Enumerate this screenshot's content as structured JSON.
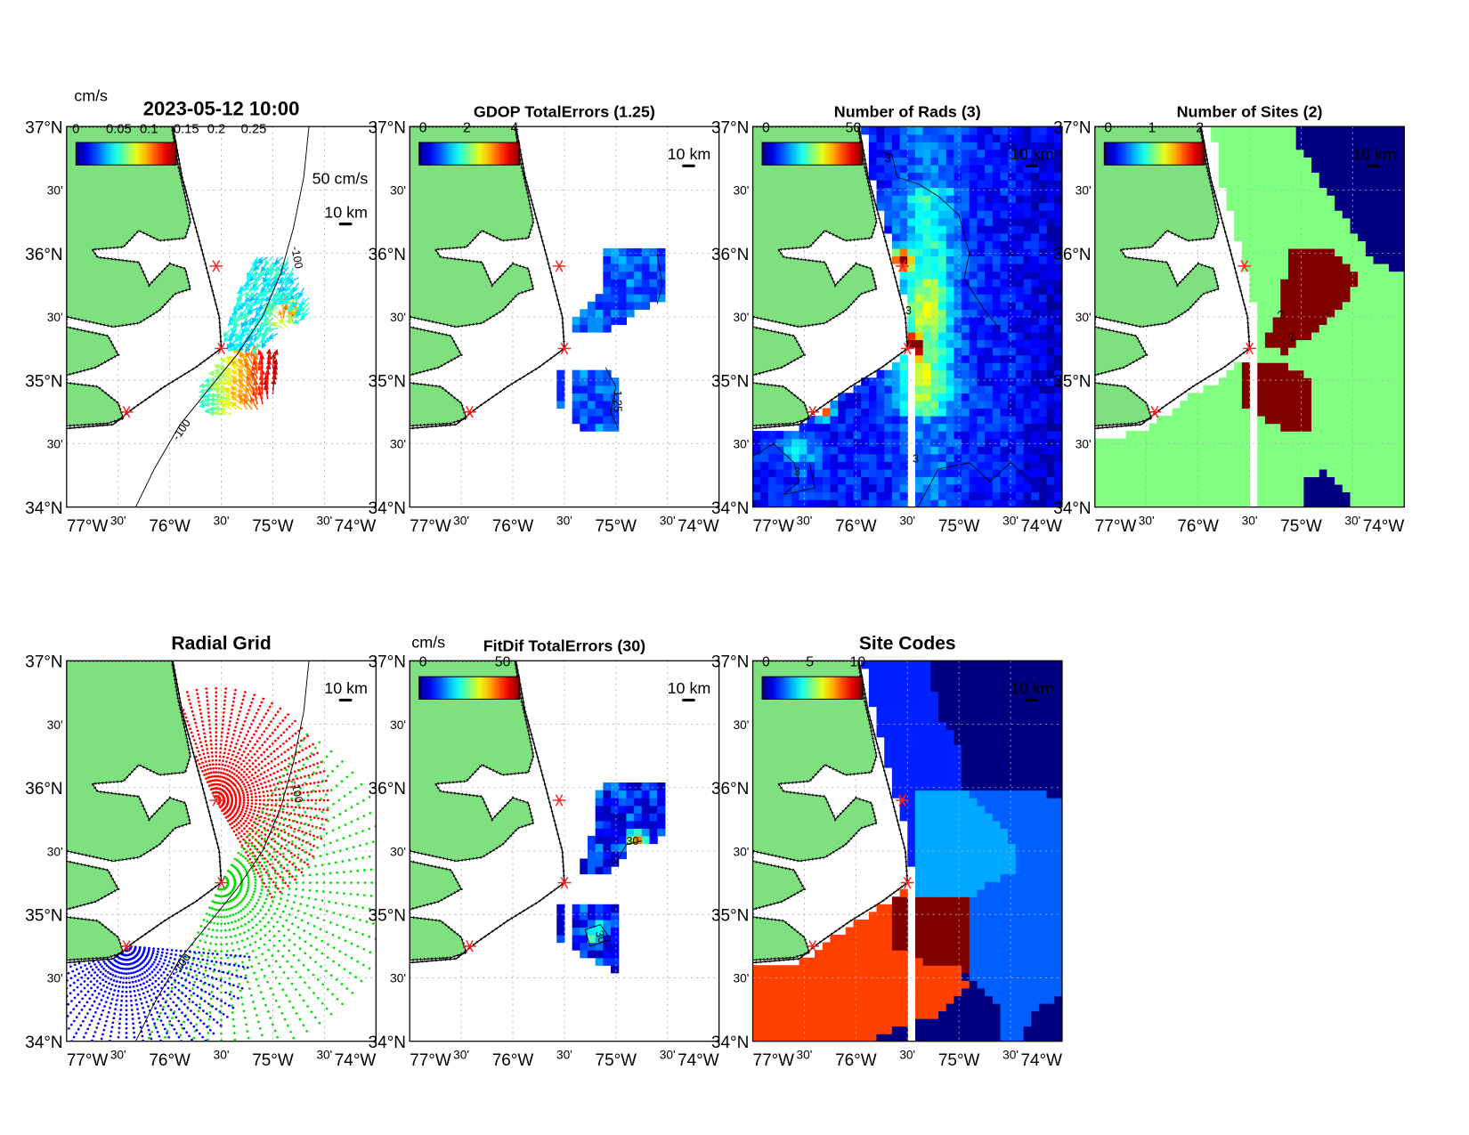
{
  "figure": {
    "timestamp_title": "2023-05-12 10:00",
    "scale_label": "10 km",
    "vector_scale_label": "50 cm/s"
  },
  "axes": {
    "lon_range": [
      -77,
      -74
    ],
    "lat_range": [
      34,
      37
    ],
    "lat_ticks": [
      "37°N",
      "30'",
      "36°N",
      "30'",
      "35°N",
      "30'",
      "34°N"
    ],
    "lon_ticks": [
      "77°W",
      "30'",
      "76°W",
      "30'",
      "75°W",
      "30'",
      "74°W"
    ]
  },
  "colors": {
    "land": "#7fe07f",
    "site_marker": "#ff2020",
    "grid": "#b0b0b0"
  },
  "sites": [
    {
      "lon": -75.55,
      "lat": 35.9
    },
    {
      "lon": -75.5,
      "lat": 35.25
    },
    {
      "lon": -76.42,
      "lat": 34.75
    }
  ],
  "panels": [
    {
      "id": "totals",
      "title": "2023-05-12 10:00",
      "unit": "cm/s",
      "cbar": {
        "min": 0,
        "max": 0.3,
        "ticks": [
          "0",
          "0.05",
          "0.1",
          "0.15",
          "0.2",
          "0.25"
        ]
      },
      "contour_labels": [
        "-100",
        "-100"
      ]
    },
    {
      "id": "gdop",
      "title": "GDOP TotalErrors (1.25)",
      "cbar": {
        "min": 0,
        "max": 4.2,
        "ticks": [
          "0",
          "2",
          "4"
        ],
        "tick_values": [
          0,
          2,
          4
        ]
      },
      "contour_labels": [
        "1.25"
      ]
    },
    {
      "id": "num-rads",
      "title": "Number of Rads (3)",
      "cbar": {
        "min": 0,
        "max": 55,
        "ticks": [
          "0",
          "50"
        ],
        "tick_values": [
          0,
          50
        ]
      },
      "contour_labels": [
        "3",
        "3",
        "3",
        "3"
      ]
    },
    {
      "id": "num-sites",
      "title": "Number of Sites (2)",
      "cbar": {
        "min": 0,
        "max": 2.1,
        "ticks": [
          "0",
          "1",
          "2"
        ],
        "tick_values": [
          0,
          1,
          2
        ]
      },
      "contour_labels": [
        "2",
        "2"
      ]
    },
    {
      "id": "radial-grid",
      "title": "Radial Grid",
      "contour_labels": [
        "-100",
        "-100"
      ]
    },
    {
      "id": "fitdif",
      "title": "FitDif TotalErrors (30)",
      "unit": "cm/s",
      "cbar": {
        "min": 0,
        "max": 60,
        "ticks": [
          "0",
          "50"
        ],
        "tick_values": [
          0,
          50
        ]
      },
      "contour_labels": [
        "30",
        "30"
      ]
    },
    {
      "id": "site-codes",
      "title": "Site Codes",
      "cbar": {
        "min": 0,
        "max": 10.5,
        "ticks": [
          "0",
          "5",
          "10"
        ],
        "tick_values": [
          0,
          5,
          10
        ]
      },
      "contour_labels": []
    }
  ],
  "fields": {
    "num_rads_hotspots": [
      {
        "lon": -75.55,
        "lat": 35.95,
        "value": 55
      },
      {
        "lon": -75.45,
        "lat": 35.27,
        "value": 65
      },
      {
        "lon": -76.3,
        "lat": 34.78,
        "value": 40
      }
    ],
    "num_sites": {
      "default_color": "#80ff80",
      "regions": [
        {
          "value": 2,
          "color": "#800000",
          "poly": [
            [
              -75.15,
              36.02
            ],
            [
              -74.7,
              36.02
            ],
            [
              -74.45,
              35.85
            ],
            [
              -74.5,
              35.7
            ],
            [
              -74.85,
              35.4
            ],
            [
              -75.15,
              35.2
            ],
            [
              -75.35,
              35.3
            ],
            [
              -75.2,
              35.6
            ],
            [
              -75.15,
              35.9
            ]
          ]
        },
        {
          "value": 2,
          "color": "#800000",
          "poly": [
            [
              -75.6,
              35.15
            ],
            [
              -75.0,
              35.1
            ],
            [
              -74.9,
              34.95
            ],
            [
              -74.9,
              34.58
            ],
            [
              -75.1,
              34.58
            ],
            [
              -75.4,
              34.72
            ],
            [
              -75.6,
              34.8
            ]
          ]
        },
        {
          "value": 0,
          "color": "#000080",
          "poly": [
            [
              -75.0,
              37
            ],
            [
              -74,
              37
            ],
            [
              -74,
              35.85
            ],
            [
              -74.3,
              35.95
            ],
            [
              -74.6,
              36.3
            ],
            [
              -74.9,
              36.7
            ],
            [
              -75.05,
              36.9
            ]
          ]
        },
        {
          "value": 0,
          "color": "#000080",
          "poly": [
            [
              -75.0,
              34.0
            ],
            [
              -74.55,
              34.0
            ],
            [
              -74.55,
              34.12
            ],
            [
              -74.8,
              34.3
            ],
            [
              -75.0,
              34.2
            ]
          ]
        }
      ]
    },
    "site_codes": {
      "default_color": "#000080",
      "regions": [
        {
          "code": 10,
          "color": "#800000",
          "poly": [
            [
              -75.66,
              35.13
            ],
            [
              -74.9,
              35.13
            ],
            [
              -74.9,
              34.56
            ],
            [
              -75.3,
              34.6
            ],
            [
              -75.66,
              34.75
            ]
          ]
        },
        {
          "code": 9,
          "color": "#ff4000",
          "poly": [
            [
              -77,
              35.2
            ],
            [
              -75.45,
              35.2
            ],
            [
              -75.35,
              35.0
            ],
            [
              -75.0,
              34.95
            ],
            [
              -74.93,
              34.4
            ],
            [
              -75.2,
              34.2
            ],
            [
              -75.6,
              34.1
            ],
            [
              -75.9,
              34.0
            ],
            [
              -77,
              34.0
            ]
          ]
        },
        {
          "code": 4,
          "color": "#00a8ff",
          "poly": [
            [
              -75.45,
              36.0
            ],
            [
              -74.95,
              36.0
            ],
            [
              -74.5,
              35.6
            ],
            [
              -74.45,
              35.35
            ],
            [
              -74.9,
              35.15
            ],
            [
              -75.45,
              35.15
            ]
          ]
        },
        {
          "code": 3,
          "color": "#0060ff",
          "poly": [
            [
              -74.95,
              36.0
            ],
            [
              -74.3,
              36.0
            ],
            [
              -74.0,
              35.9
            ],
            [
              -74.0,
              34.4
            ],
            [
              -74.3,
              34.2
            ],
            [
              -74.4,
              34.0
            ],
            [
              -74.6,
              34.0
            ],
            [
              -74.6,
              34.3
            ],
            [
              -74.9,
              34.5
            ],
            [
              -74.9,
              35.15
            ],
            [
              -74.45,
              35.35
            ],
            [
              -74.5,
              35.6
            ]
          ]
        },
        {
          "code": 2,
          "color": "#0020ff",
          "poly": [
            [
              -75.95,
              37
            ],
            [
              -75.3,
              37
            ],
            [
              -75.2,
              36.6
            ],
            [
              -75.0,
              36.3
            ],
            [
              -74.95,
              36.0
            ],
            [
              -75.45,
              36.0
            ],
            [
              -75.45,
              35.2
            ],
            [
              -75.6,
              35.2
            ],
            [
              -75.9,
              36.0
            ]
          ]
        }
      ]
    },
    "radial_grid": [
      {
        "site": 0,
        "color": "#ff0000",
        "max_range_km": 100,
        "range_step_km": 3.5,
        "bearing_range": [
          -25,
          150
        ]
      },
      {
        "site": 1,
        "color": "#00e000",
        "max_range_km": 150,
        "range_step_km": 6,
        "bearing_range": [
          30,
          205
        ]
      },
      {
        "site": 2,
        "color": "#0000ff",
        "max_range_km": 110,
        "range_step_km": 4,
        "bearing_range": [
          95,
          300
        ]
      }
    ]
  }
}
